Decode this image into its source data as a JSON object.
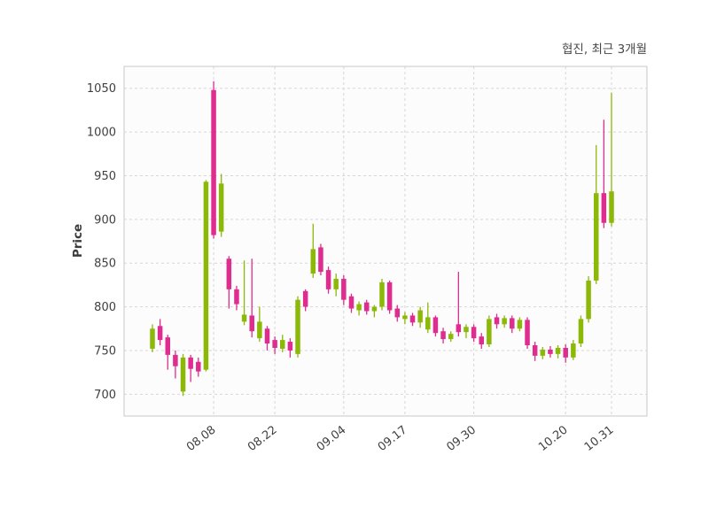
{
  "header": {
    "title": "협진, 최근 3개월"
  },
  "chart_data": {
    "type": "candlestick",
    "title": "협진, 최근 3개월",
    "ylabel": "Price",
    "ylim": [
      675,
      1075
    ],
    "yticks": [
      700,
      750,
      800,
      850,
      900,
      950,
      1000,
      1050
    ],
    "xticks": [
      {
        "index": 8,
        "label": "08.08"
      },
      {
        "index": 16,
        "label": "08.22"
      },
      {
        "index": 25,
        "label": "09.04"
      },
      {
        "index": 33,
        "label": "09.17"
      },
      {
        "index": 42,
        "label": "09.30"
      },
      {
        "index": 54,
        "label": "10.20"
      },
      {
        "index": 60,
        "label": "10.31"
      }
    ],
    "grid": "dashed",
    "legend": "none",
    "up_color": "#8cb808",
    "down_color": "#de2d8f",
    "candles_format": [
      "open",
      "high",
      "low",
      "close"
    ],
    "candles": [
      [
        752,
        780,
        748,
        775
      ],
      [
        778,
        786,
        756,
        762
      ],
      [
        765,
        768,
        728,
        745
      ],
      [
        745,
        750,
        718,
        732
      ],
      [
        703,
        746,
        698,
        742
      ],
      [
        742,
        745,
        714,
        729
      ],
      [
        737,
        742,
        720,
        726
      ],
      [
        728,
        945,
        726,
        943
      ],
      [
        1048,
        1058,
        878,
        882
      ],
      [
        886,
        952,
        880,
        941
      ],
      [
        855,
        858,
        798,
        820
      ],
      [
        820,
        824,
        796,
        803
      ],
      [
        783,
        853,
        779,
        791
      ],
      [
        790,
        855,
        765,
        772
      ],
      [
        764,
        800,
        760,
        783
      ],
      [
        775,
        778,
        750,
        758
      ],
      [
        762,
        766,
        746,
        753
      ],
      [
        752,
        768,
        748,
        762
      ],
      [
        760,
        764,
        742,
        750
      ],
      [
        746,
        812,
        742,
        808
      ],
      [
        818,
        820,
        795,
        800
      ],
      [
        838,
        895,
        833,
        866
      ],
      [
        868,
        872,
        836,
        840
      ],
      [
        842,
        846,
        815,
        820
      ],
      [
        820,
        838,
        812,
        832
      ],
      [
        832,
        836,
        802,
        808
      ],
      [
        812,
        815,
        793,
        798
      ],
      [
        796,
        806,
        790,
        803
      ],
      [
        805,
        808,
        791,
        795
      ],
      [
        795,
        802,
        788,
        800
      ],
      [
        800,
        832,
        796,
        828
      ],
      [
        828,
        830,
        792,
        796
      ],
      [
        798,
        802,
        783,
        788
      ],
      [
        786,
        794,
        780,
        790
      ],
      [
        790,
        793,
        778,
        782
      ],
      [
        782,
        800,
        776,
        796
      ],
      [
        774,
        805,
        770,
        788
      ],
      [
        788,
        790,
        766,
        770
      ],
      [
        772,
        776,
        758,
        763
      ],
      [
        763,
        772,
        760,
        769
      ],
      [
        780,
        840,
        766,
        771
      ],
      [
        771,
        780,
        764,
        777
      ],
      [
        777,
        780,
        760,
        764
      ],
      [
        766,
        770,
        752,
        757
      ],
      [
        757,
        790,
        754,
        786
      ],
      [
        788,
        792,
        775,
        780
      ],
      [
        780,
        790,
        776,
        787
      ],
      [
        787,
        790,
        770,
        775
      ],
      [
        775,
        788,
        772,
        785
      ],
      [
        785,
        788,
        752,
        756
      ],
      [
        756,
        760,
        738,
        744
      ],
      [
        744,
        754,
        740,
        751
      ],
      [
        751,
        755,
        742,
        746
      ],
      [
        746,
        756,
        741,
        753
      ],
      [
        753,
        757,
        736,
        742
      ],
      [
        742,
        762,
        739,
        758
      ],
      [
        758,
        790,
        754,
        786
      ],
      [
        786,
        835,
        782,
        830
      ],
      [
        830,
        985,
        826,
        930
      ],
      [
        930,
        1014,
        890,
        896
      ],
      [
        896,
        1045,
        892,
        932
      ]
    ]
  }
}
